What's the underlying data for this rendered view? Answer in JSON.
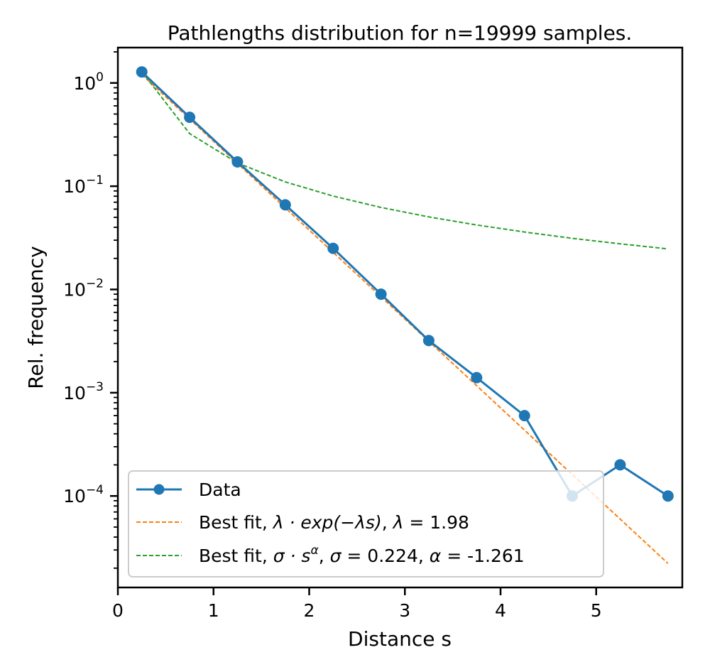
{
  "chart_data": {
    "type": "line",
    "title": "Pathlengths distribution for n=19999 samples.",
    "xlabel": "Distance s",
    "ylabel": "Rel. frequency",
    "xlim": [
      0,
      5.9
    ],
    "ylim": [
      1.3e-05,
      2.2
    ],
    "yscale": "log",
    "x_ticks": [
      0,
      1,
      2,
      3,
      4,
      5
    ],
    "y_ticks": [
      {
        "value": 1,
        "base": "10",
        "exp": "0"
      },
      {
        "value": 0.1,
        "base": "10",
        "exp": "−1"
      },
      {
        "value": 0.01,
        "base": "10",
        "exp": "−2"
      },
      {
        "value": 0.001,
        "base": "10",
        "exp": "−3"
      },
      {
        "value": 0.0001,
        "base": "10",
        "exp": "−4"
      }
    ],
    "grid": false,
    "legend_position": "lower-left",
    "series": [
      {
        "name": "Data",
        "style": "solid-markers",
        "color": "#1f77b4",
        "x": [
          0.25,
          0.75,
          1.25,
          1.75,
          2.25,
          2.75,
          3.25,
          3.75,
          4.25,
          4.75,
          5.25,
          5.75
        ],
        "y": [
          1.28,
          0.465,
          0.172,
          0.066,
          0.025,
          0.009,
          0.0032,
          0.0014,
          0.0006,
          0.0001,
          0.0002,
          0.0001
        ]
      },
      {
        "name": "Best fit, λ·exp(−λs), λ = 1.98",
        "style": "dashed",
        "color": "#ff7f0e",
        "x": [
          0.25,
          0.75,
          1.25,
          1.75,
          2.25,
          2.75,
          3.25,
          3.75,
          4.25,
          4.75,
          5.25,
          5.75
        ],
        "y": [
          1.207,
          0.448,
          0.166,
          0.0617,
          0.0229,
          0.0085,
          0.00315,
          0.00117,
          0.000434,
          0.000161,
          5.99e-05,
          2.22e-05
        ]
      },
      {
        "name": "Best fit, σ·s^α, σ = 0.224, α = -1.261",
        "style": "dashed",
        "color": "#2ca02c",
        "x": [
          0.25,
          0.75,
          1.25,
          1.75,
          2.25,
          2.75,
          3.25,
          3.75,
          4.25,
          4.75,
          5.25,
          5.75
        ],
        "y": [
          1.29,
          0.323,
          0.168,
          0.11,
          0.0803,
          0.0623,
          0.0505,
          0.0421,
          0.036,
          0.0313,
          0.0277,
          0.0247
        ]
      }
    ],
    "legend": [
      {
        "prefix": "Data",
        "symbol1": "",
        "mid": "",
        "symbol2": "",
        "tail": ""
      },
      {
        "prefix": "Best fit, ",
        "symbol1": "λ · exp(−λs)",
        "mid": ", ",
        "symbol2": "λ =",
        "tail": " 1.98"
      },
      {
        "prefix": "Best fit, ",
        "symbol1": "σ · s",
        "sup": "α",
        "mid": ", ",
        "symbol2": "σ =",
        "tail": " 0.224, ",
        "symbol3": "α =",
        "tail2": " -1.261"
      }
    ]
  }
}
